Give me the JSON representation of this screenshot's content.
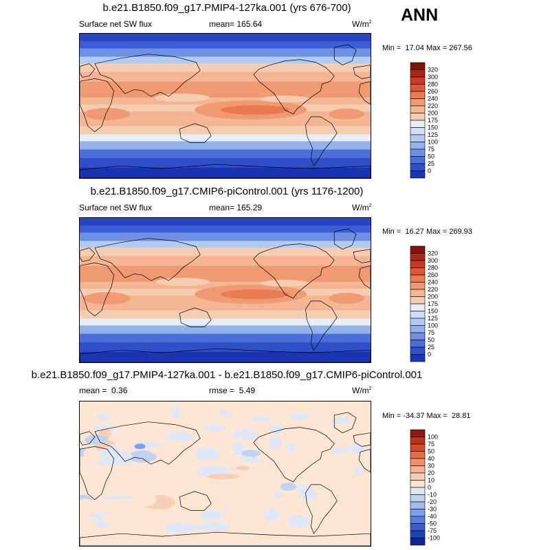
{
  "season": "ANN",
  "colors": {
    "warm_scale": [
      "#fbe2cf",
      "#f7cdb2",
      "#f4b592",
      "#ef9a72",
      "#e97a52",
      "#dd5636",
      "#cb3a1f",
      "#aa2714",
      "#7e150a"
    ],
    "cool_scale": [
      "#e8eef9",
      "#d0dff7",
      "#b3cbf1",
      "#93b1eb",
      "#6d90e2",
      "#4a6fd8",
      "#2e50c9",
      "#1a34b4",
      "#0c1d96",
      "#050f7c"
    ],
    "neutral": "#fbe8d8",
    "diff_pos": [
      "#fce5d2",
      "#f8cfb4",
      "#f3b190",
      "#ee8f69",
      "#e66d45",
      "#d44a2c",
      "#bc311a",
      "#8e1a0c"
    ],
    "diff_neg": [
      "#dfe7f7",
      "#c1d3f3",
      "#a1bdee",
      "#7f9fe6",
      "#5a7ddb",
      "#3b5ccd",
      "#2341b6",
      "#0f2590"
    ]
  },
  "panels": [
    {
      "title": "b.e21.B1850.f09_g17.PMIP4-127ka.001 (yrs 676-700)",
      "variable": "Surface net SW flux",
      "stat_label": "mean=",
      "stat_value": "165.64",
      "units_base": "W/m",
      "units_exp": "2",
      "min_label": "Min =",
      "min_value": "17.04",
      "max_label": "Max =",
      "max_value": "267.56",
      "colorbar_labels": [
        "320",
        "300",
        "280",
        "260",
        "240",
        "220",
        "200",
        "175",
        "150",
        "125",
        "100",
        "75",
        "50",
        "25",
        "0"
      ],
      "land_fraction": 0.3
    },
    {
      "title": "b.e21.B1850.f09_g17.CMIP6-piControl.001 (yrs 1176-1200)",
      "variable": "Surface net SW flux",
      "stat_label": "mean=",
      "stat_value": "165.29",
      "units_base": "W/m",
      "units_exp": "2",
      "min_label": "Min =",
      "min_value": "16.27",
      "max_label": "Max =",
      "max_value": "269.93",
      "colorbar_labels": [
        "320",
        "300",
        "280",
        "260",
        "240",
        "220",
        "200",
        "175",
        "150",
        "125",
        "100",
        "75",
        "50",
        "25",
        "0"
      ]
    },
    {
      "title": "b.e21.B1850.f09_g17.PMIP4-127ka.001 - b.e21.B1850.f09_g17.CMIP6-piControl.001",
      "variable": "mean =",
      "variable_value": "0.36",
      "stat_label": "rmse =",
      "stat_value": "5.49",
      "units_base": "W/m",
      "units_exp": "2",
      "min_label": "Min =",
      "min_value": "-34.37",
      "max_label": "Max =",
      "max_value": "28.81",
      "colorbar_labels": [
        "100",
        "75",
        "50",
        "40",
        "30",
        "20",
        "10",
        "0",
        "-10",
        "-20",
        "-30",
        "-40",
        "-50",
        "-75",
        "-100"
      ]
    }
  ]
}
